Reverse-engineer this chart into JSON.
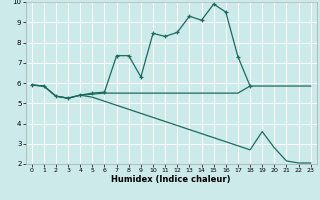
{
  "xlabel": "Humidex (Indice chaleur)",
  "bg_color": "#cceaea",
  "grid_color": "#ffffff",
  "line_color": "#1a6b5e",
  "xlim": [
    -0.5,
    23.5
  ],
  "ylim": [
    2,
    10
  ],
  "xticks": [
    0,
    1,
    2,
    3,
    4,
    5,
    6,
    7,
    8,
    9,
    10,
    11,
    12,
    13,
    14,
    15,
    16,
    17,
    18,
    19,
    20,
    21,
    22,
    23
  ],
  "yticks": [
    2,
    3,
    4,
    5,
    6,
    7,
    8,
    9,
    10
  ],
  "line1_x": [
    0,
    1,
    2,
    3,
    4,
    5,
    6,
    7,
    8,
    9,
    10,
    11,
    12,
    13,
    14,
    15,
    16,
    17,
    18
  ],
  "line1_y": [
    5.9,
    5.85,
    5.35,
    5.25,
    5.4,
    5.5,
    5.55,
    7.35,
    7.35,
    6.3,
    8.45,
    8.3,
    8.5,
    9.3,
    9.1,
    9.9,
    9.5,
    7.3,
    5.85
  ],
  "line2_x": [
    0,
    1,
    2,
    3,
    4,
    5,
    6,
    7,
    8,
    9,
    10,
    11,
    12,
    13,
    14,
    15,
    16,
    17,
    18,
    19,
    20,
    21,
    22,
    23
  ],
  "line2_y": [
    5.9,
    5.85,
    5.35,
    5.25,
    5.4,
    5.45,
    5.5,
    5.5,
    5.5,
    5.5,
    5.5,
    5.5,
    5.5,
    5.5,
    5.5,
    5.5,
    5.5,
    5.5,
    5.85,
    5.85,
    5.85,
    5.85,
    5.85,
    5.85
  ],
  "line3_x": [
    0,
    1,
    2,
    3,
    4,
    5,
    6,
    7,
    8,
    9,
    10,
    11,
    12,
    13,
    14,
    15,
    16,
    17,
    18,
    19,
    20,
    21,
    22,
    23
  ],
  "line3_y": [
    5.9,
    5.85,
    5.35,
    5.25,
    5.4,
    5.3,
    5.1,
    4.9,
    4.7,
    4.5,
    4.3,
    4.1,
    3.9,
    3.7,
    3.5,
    3.3,
    3.1,
    2.9,
    2.7,
    3.6,
    2.8,
    2.15,
    2.05,
    2.05
  ]
}
